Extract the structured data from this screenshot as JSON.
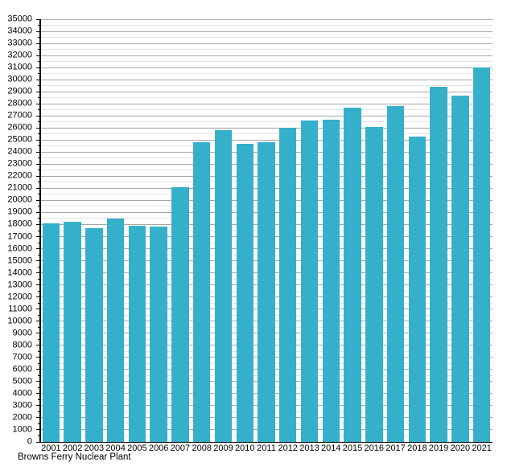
{
  "chart_data": {
    "type": "bar",
    "title": "",
    "footer_label": "Browns Ferry Nuclear Plant",
    "categories": [
      "2001",
      "2002",
      "2003",
      "2004",
      "2005",
      "2006",
      "2007",
      "2008",
      "2009",
      "2010",
      "2011",
      "2012",
      "2013",
      "2014",
      "2015",
      "2016",
      "2017",
      "2018",
      "2019",
      "2020",
      "2021"
    ],
    "values": [
      18100,
      18200,
      17700,
      18500,
      17900,
      17800,
      21100,
      24800,
      25800,
      24700,
      24800,
      26000,
      26600,
      26700,
      27700,
      26100,
      27800,
      25300,
      29400,
      28700,
      31000
    ],
    "xlabel": "",
    "ylabel": "",
    "ylim": [
      0,
      35000
    ],
    "y_major_step": 1000,
    "y_minor_step": 500,
    "grid": "horizontal, major and minor, behind bars",
    "legend_position": "none",
    "bar_color": "#35B0CB",
    "major_grid_color": "#A6A6A6",
    "minor_grid_color": "#E4E4E4",
    "axis_color": "#000000",
    "text_color": "#000000",
    "background_color": "#FFFFFF"
  }
}
